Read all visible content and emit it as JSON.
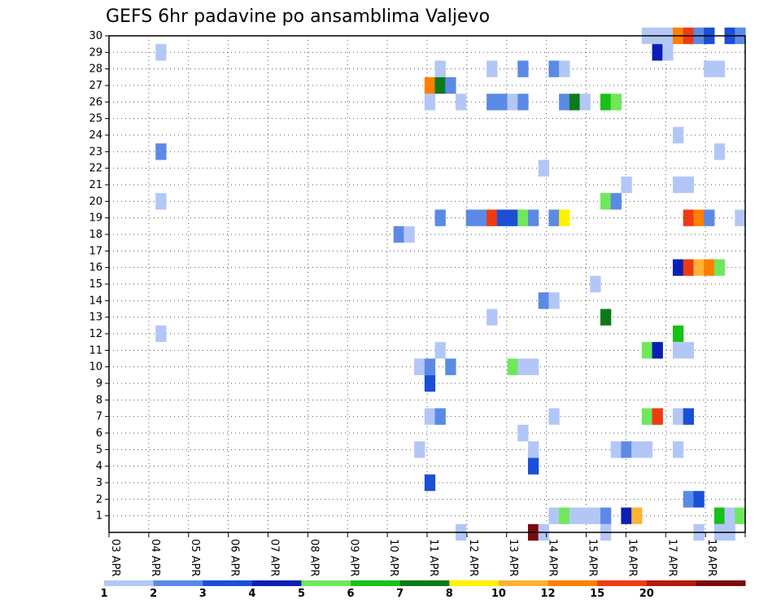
{
  "chart_data": {
    "type": "heatmap",
    "title": "GEFS 6hr padavine po ansamblima Valjevo",
    "xlabel": "",
    "ylabel": "",
    "x_axis": {
      "unit": "6-hour steps",
      "range": [
        0,
        60
      ],
      "tick_labels": [
        "03 APR",
        "04 APR",
        "05 APR",
        "06 APR",
        "07 APR",
        "08 APR",
        "09 APR",
        "10 APR",
        "11 APR",
        "12 APR",
        "13 APR",
        "14 APR",
        "15 APR",
        "16 APR",
        "17 APR",
        "18 APR"
      ]
    },
    "y_axis": {
      "range": [
        0,
        30
      ],
      "tick_labels": [
        "1",
        "2",
        "3",
        "4",
        "5",
        "6",
        "7",
        "8",
        "9",
        "10",
        "11",
        "12",
        "13",
        "14",
        "15",
        "16",
        "17",
        "18",
        "19",
        "20",
        "21",
        "22",
        "23",
        "24",
        "25",
        "26",
        "27",
        "28",
        "29",
        "30"
      ]
    },
    "grid": true,
    "colorbar": {
      "placement": "bottom",
      "colors": [
        "#b3c7f7",
        "#5b8ae6",
        "#1a4fd6",
        "#0a1fb5",
        "#6fe85a",
        "#17c117",
        "#0d7a19",
        "#fff200",
        "#ffb233",
        "#ff7f00",
        "#ee3b12",
        "#b51a0a",
        "#7a0a0a"
      ],
      "labels": [
        "1",
        "2",
        "3",
        "4",
        "5",
        "6",
        "7",
        "8",
        "10",
        "12",
        "15",
        "20"
      ]
    },
    "cells": [
      [
        5.5,
        29,
        0
      ],
      [
        5.5,
        23,
        1
      ],
      [
        5.5,
        20,
        0
      ],
      [
        5.5,
        12,
        0
      ],
      [
        28.5,
        18,
        1
      ],
      [
        29.5,
        18,
        0
      ],
      [
        30.5,
        10,
        0
      ],
      [
        31.5,
        10,
        1
      ],
      [
        31.5,
        9,
        2
      ],
      [
        31.5,
        7,
        0
      ],
      [
        31.5,
        3,
        2
      ],
      [
        30.5,
        5,
        0
      ],
      [
        31.5,
        26,
        0
      ],
      [
        31.5,
        27,
        9
      ],
      [
        32.5,
        28,
        0
      ],
      [
        32.5,
        27,
        6
      ],
      [
        32.5,
        19,
        1
      ],
      [
        32.5,
        11,
        0
      ],
      [
        32.5,
        7,
        1
      ],
      [
        33.5,
        27,
        1
      ],
      [
        33.5,
        10,
        1
      ],
      [
        34.5,
        26,
        0
      ],
      [
        34.5,
        0,
        0
      ],
      [
        35.5,
        19,
        1
      ],
      [
        36.5,
        19,
        1
      ],
      [
        37.5,
        19,
        10
      ],
      [
        37.5,
        28,
        0
      ],
      [
        37.5,
        26,
        1
      ],
      [
        37.5,
        13,
        0
      ],
      [
        38.5,
        26,
        1
      ],
      [
        39.5,
        26,
        0
      ],
      [
        40.5,
        26,
        1
      ],
      [
        40.5,
        28,
        1
      ],
      [
        38.5,
        19,
        2
      ],
      [
        39.5,
        19,
        2
      ],
      [
        39.5,
        10,
        4
      ],
      [
        40.5,
        19,
        4
      ],
      [
        40.5,
        10,
        0
      ],
      [
        41.5,
        19,
        1
      ],
      [
        41.5,
        10,
        0
      ],
      [
        40.5,
        6,
        0
      ],
      [
        41.5,
        5,
        0
      ],
      [
        41.5,
        4,
        2
      ],
      [
        41.5,
        0,
        12
      ],
      [
        42.5,
        0,
        0
      ],
      [
        42.5,
        22,
        0
      ],
      [
        42.5,
        14,
        1
      ],
      [
        43.5,
        28,
        1
      ],
      [
        43.5,
        19,
        1
      ],
      [
        43.5,
        14,
        0
      ],
      [
        43.5,
        7,
        0
      ],
      [
        43.5,
        1,
        0
      ],
      [
        44.5,
        28,
        0
      ],
      [
        44.5,
        19,
        7
      ],
      [
        44.5,
        1,
        4
      ],
      [
        44.5,
        26,
        1
      ],
      [
        45.5,
        26,
        6
      ],
      [
        45.5,
        1,
        0
      ],
      [
        46.5,
        26,
        0
      ],
      [
        46.5,
        1,
        0
      ],
      [
        47.5,
        15,
        0
      ],
      [
        47.5,
        1,
        0
      ],
      [
        48.5,
        26,
        5
      ],
      [
        48.5,
        20,
        4
      ],
      [
        48.5,
        13,
        6
      ],
      [
        48.5,
        1,
        1
      ],
      [
        48.5,
        0,
        0
      ],
      [
        49.5,
        26,
        4
      ],
      [
        49.5,
        20,
        1
      ],
      [
        49.5,
        5,
        0
      ],
      [
        50.5,
        5,
        1
      ],
      [
        50.5,
        1,
        3
      ],
      [
        50.5,
        21,
        0
      ],
      [
        51.5,
        5,
        0
      ],
      [
        51.5,
        1,
        8
      ],
      [
        52.5,
        5,
        0
      ],
      [
        52.5,
        11,
        4
      ],
      [
        52.5,
        7,
        4
      ],
      [
        52.5,
        30,
        0
      ],
      [
        53.5,
        30,
        0
      ],
      [
        53.5,
        11,
        3
      ],
      [
        53.5,
        7,
        10
      ],
      [
        53.5,
        29,
        3
      ],
      [
        54.5,
        29,
        0
      ],
      [
        54.5,
        30,
        0
      ],
      [
        55.5,
        30,
        9
      ],
      [
        55.5,
        24,
        0
      ],
      [
        55.5,
        21,
        0
      ],
      [
        55.5,
        16,
        3
      ],
      [
        55.5,
        12,
        5
      ],
      [
        55.5,
        7,
        0
      ],
      [
        55.5,
        5,
        0
      ],
      [
        55.5,
        11,
        0
      ],
      [
        56.5,
        30,
        10
      ],
      [
        56.5,
        21,
        0
      ],
      [
        56.5,
        19,
        10
      ],
      [
        56.5,
        16,
        10
      ],
      [
        56.5,
        11,
        0
      ],
      [
        56.5,
        7,
        2
      ],
      [
        56.5,
        2,
        1
      ],
      [
        57.5,
        30,
        1
      ],
      [
        57.5,
        19,
        9
      ],
      [
        57.5,
        16,
        8
      ],
      [
        57.5,
        2,
        2
      ],
      [
        57.5,
        0,
        0
      ],
      [
        58.5,
        30,
        2
      ],
      [
        58.5,
        19,
        1
      ],
      [
        58.5,
        16,
        9
      ],
      [
        58.5,
        28,
        0
      ],
      [
        59.5,
        28,
        0
      ],
      [
        59.5,
        23,
        0
      ],
      [
        59.5,
        16,
        4
      ],
      [
        59.5,
        1,
        5
      ],
      [
        59.5,
        0,
        0
      ],
      [
        60.5,
        30,
        2
      ],
      [
        60.5,
        1,
        0
      ],
      [
        60.5,
        0,
        0
      ],
      [
        61.5,
        30,
        1
      ],
      [
        61.5,
        19,
        0
      ],
      [
        61.5,
        1,
        4
      ]
    ]
  }
}
